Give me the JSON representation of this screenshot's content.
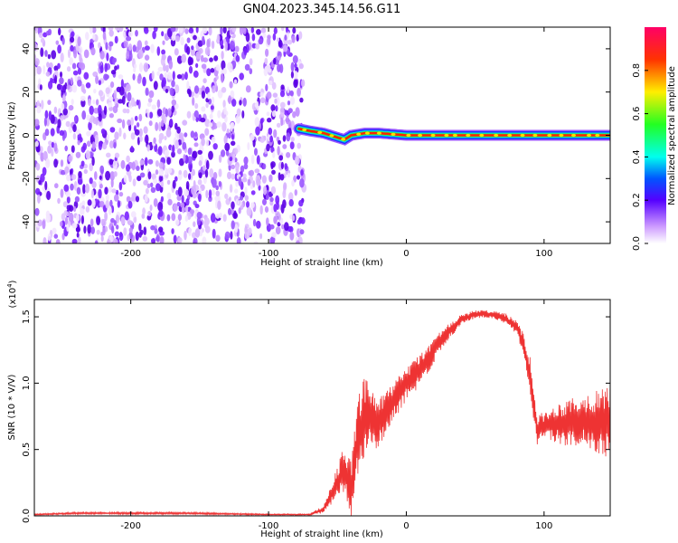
{
  "title": "GN04.2023.345.14.56.G11",
  "chart_data": [
    {
      "type": "heatmap",
      "name": "spectrogram",
      "xlabel": "Height of straight line (km)",
      "ylabel": "Frequency (Hz)",
      "xlim": [
        -270,
        148
      ],
      "ylim": [
        -50,
        50
      ],
      "x_ticks": [
        -200,
        -100,
        0,
        100
      ],
      "y_ticks": [
        -40,
        -20,
        0,
        20,
        40
      ],
      "noise_region_x": [
        -270,
        -78
      ],
      "signal_track": {
        "x": [
          -78,
          -70,
          -60,
          -50,
          -45,
          -40,
          -30,
          -20,
          -10,
          0,
          20,
          40,
          60,
          80,
          100,
          120,
          148
        ],
        "freq": [
          3,
          2,
          1,
          -1,
          -2,
          0,
          1,
          1,
          0.5,
          0,
          0,
          0,
          0,
          0,
          0,
          0,
          0
        ]
      },
      "colorbar": {
        "label": "Normalized spectral amplitude",
        "range": [
          0,
          1
        ],
        "ticks": [
          0.0,
          0.2,
          0.4,
          0.6,
          0.8
        ]
      }
    },
    {
      "type": "line",
      "name": "snr",
      "xlabel": "Height of straight line (km)",
      "ylabel": "SNR (10 * V/V)",
      "y_multiplier_label": "(x10",
      "y_multiplier_exp": "4",
      "y_multiplier_close": ")",
      "xlim": [
        -270,
        148
      ],
      "ylim": [
        0,
        1.63
      ],
      "x_ticks": [
        -200,
        -100,
        0,
        100
      ],
      "y_ticks": [
        0.0,
        0.5,
        1.0,
        1.5
      ],
      "color": "#ee3333",
      "envelope": {
        "x": [
          -270,
          -240,
          -200,
          -160,
          -100,
          -70,
          -60,
          -50,
          -45,
          -40,
          -35,
          -30,
          -20,
          -10,
          0,
          10,
          20,
          30,
          40,
          50,
          60,
          70,
          80,
          85,
          90,
          95,
          100,
          110,
          120,
          130,
          140,
          148
        ],
        "mid": [
          0.01,
          0.02,
          0.02,
          0.02,
          0.01,
          0.01,
          0.05,
          0.25,
          0.35,
          0.2,
          0.6,
          0.75,
          0.7,
          0.85,
          1.0,
          1.1,
          1.25,
          1.38,
          1.48,
          1.52,
          1.52,
          1.5,
          1.42,
          1.3,
          1.05,
          0.65,
          0.68,
          0.7,
          0.7,
          0.72,
          0.7,
          0.72
        ],
        "amp": [
          0.005,
          0.008,
          0.008,
          0.008,
          0.005,
          0.005,
          0.03,
          0.12,
          0.2,
          0.2,
          0.3,
          0.3,
          0.18,
          0.15,
          0.13,
          0.12,
          0.1,
          0.06,
          0.04,
          0.03,
          0.03,
          0.04,
          0.05,
          0.1,
          0.15,
          0.12,
          0.1,
          0.15,
          0.2,
          0.2,
          0.25,
          0.3
        ]
      }
    }
  ]
}
